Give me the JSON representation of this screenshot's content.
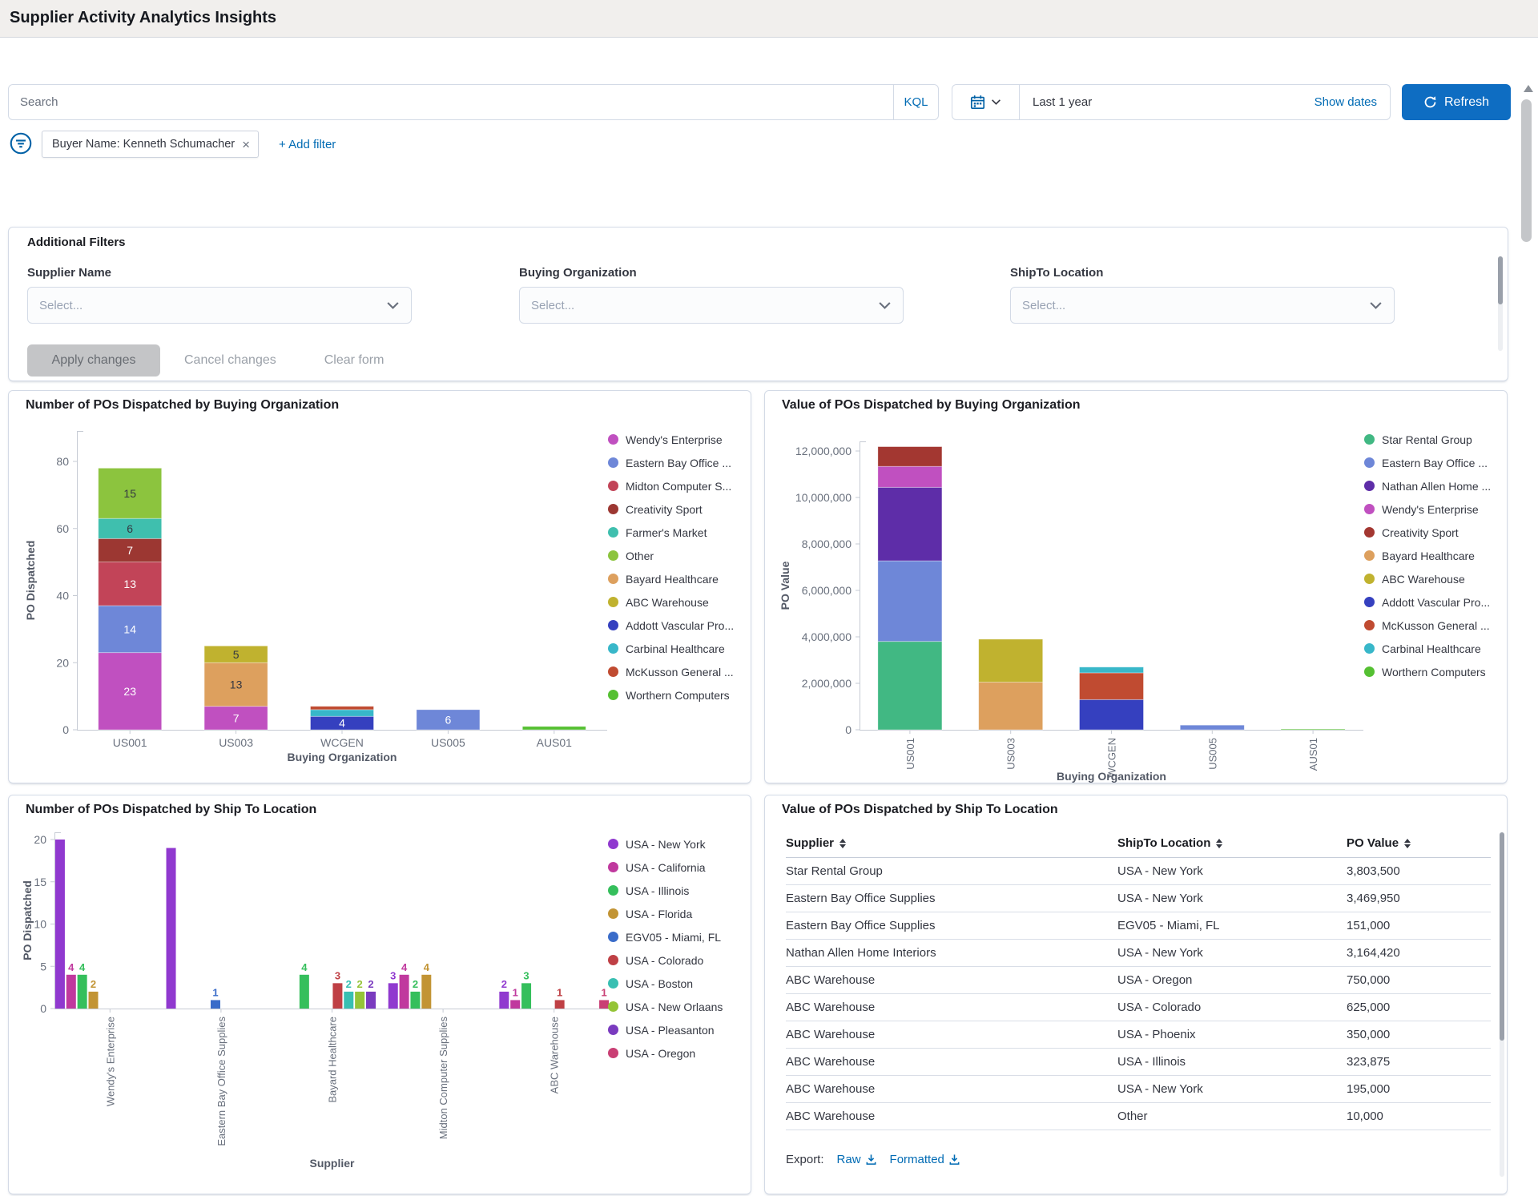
{
  "header": {
    "title": "Supplier Activity Analytics Insights"
  },
  "query_bar": {
    "search_placeholder": "Search",
    "kql": "KQL",
    "date_range": "Last 1 year",
    "show_dates": "Show dates",
    "refresh": "Refresh"
  },
  "filters": {
    "pill": "Buyer Name: Kenneth Schumacher",
    "add_filter": "+ Add filter"
  },
  "additional_filters": {
    "title": "Additional Filters",
    "fields": [
      {
        "label": "Supplier Name",
        "placeholder": "Select..."
      },
      {
        "label": "Buying Organization",
        "placeholder": "Select..."
      },
      {
        "label": "ShipTo Location",
        "placeholder": "Select..."
      }
    ],
    "apply": "Apply changes",
    "cancel": "Cancel changes",
    "clear": "Clear form"
  },
  "chart_data": [
    {
      "type": "bar",
      "mode": "stacked",
      "title": "Number of POs Dispatched by Buying Organization",
      "xlabel": "Buying Organization",
      "ylabel": "PO Dispatched",
      "ylim": [
        0,
        84
      ],
      "yticks": [
        0,
        20,
        40,
        60,
        80
      ],
      "grid": false,
      "legend_position": "right",
      "value_label_min": 4,
      "categories": [
        "US001",
        "US003",
        "WCGEN",
        "US005",
        "AUS01"
      ],
      "series": [
        {
          "name": "Wendy's Enterprise",
          "color": "#c050c0",
          "values": [
            23,
            7,
            0,
            0,
            0
          ]
        },
        {
          "name": "Eastern Bay Office ...",
          "color": "#6e87d8",
          "values": [
            14,
            0,
            0,
            6,
            0
          ]
        },
        {
          "name": "Midton Computer S...",
          "color": "#c24458",
          "values": [
            13,
            0,
            0,
            0,
            0
          ]
        },
        {
          "name": "Creativity Sport",
          "color": "#9c3732",
          "values": [
            7,
            0,
            0,
            0,
            0
          ]
        },
        {
          "name": "Farmer's Market",
          "color": "#3fbfae",
          "values": [
            6,
            0,
            0,
            0,
            0
          ]
        },
        {
          "name": "Other",
          "color": "#8cc43e",
          "values": [
            15,
            0,
            0,
            0,
            0
          ]
        },
        {
          "name": "Bayard Healthcare",
          "color": "#dda05e",
          "values": [
            0,
            13,
            0,
            0,
            0
          ]
        },
        {
          "name": "ABC Warehouse",
          "color": "#c0b22f",
          "values": [
            0,
            5,
            0,
            0,
            0
          ]
        },
        {
          "name": "Addott Vascular Pro...",
          "color": "#3540bf",
          "values": [
            0,
            0,
            4,
            0,
            0
          ]
        },
        {
          "name": "Carbinal Healthcare",
          "color": "#38b7c9",
          "values": [
            0,
            0,
            2,
            0,
            0
          ]
        },
        {
          "name": "McKusson General ...",
          "color": "#c04b31",
          "values": [
            0,
            0,
            1,
            0,
            0
          ]
        },
        {
          "name": "Worthern Computers",
          "color": "#55c032",
          "values": [
            0,
            0,
            0,
            0,
            1
          ]
        }
      ]
    },
    {
      "type": "bar",
      "mode": "stacked",
      "title": "Value of POs Dispatched by Buying Organization",
      "xlabel": "Buying Organization",
      "ylabel": "PO Value",
      "ylim": [
        0,
        12600000
      ],
      "yticks": [
        0,
        2000000,
        4000000,
        6000000,
        8000000,
        10000000,
        12000000
      ],
      "grid": false,
      "legend_position": "right",
      "rotate_x_labels": true,
      "categories": [
        "US001",
        "US003",
        "WCGEN",
        "US005",
        "AUS01"
      ],
      "series": [
        {
          "name": "Star Rental Group",
          "color": "#41b883",
          "values": [
            3803500,
            0,
            0,
            0,
            0
          ]
        },
        {
          "name": "Eastern Bay Office ...",
          "color": "#6e87d8",
          "values": [
            3469950,
            0,
            0,
            200000,
            0
          ]
        },
        {
          "name": "Nathan Allen Home ...",
          "color": "#5e2da8",
          "values": [
            3164420,
            0,
            0,
            0,
            0
          ]
        },
        {
          "name": "Wendy's Enterprise",
          "color": "#c050c0",
          "values": [
            900000,
            0,
            0,
            0,
            0
          ]
        },
        {
          "name": "Creativity Sport",
          "color": "#a33731",
          "values": [
            850000,
            0,
            0,
            0,
            0
          ]
        },
        {
          "name": "Bayard Healthcare",
          "color": "#dda05e",
          "values": [
            0,
            2050000,
            0,
            0,
            0
          ]
        },
        {
          "name": "ABC Warehouse",
          "color": "#c0b22f",
          "values": [
            0,
            1850000,
            0,
            0,
            0
          ]
        },
        {
          "name": "Addott Vascular Pro...",
          "color": "#3540bf",
          "values": [
            0,
            0,
            1300000,
            0,
            0
          ]
        },
        {
          "name": "McKusson General ...",
          "color": "#c04b31",
          "values": [
            0,
            0,
            1150000,
            0,
            0
          ]
        },
        {
          "name": "Carbinal Healthcare",
          "color": "#38b7c9",
          "values": [
            0,
            0,
            250000,
            0,
            0
          ]
        },
        {
          "name": "Worthern Computers",
          "color": "#55c032",
          "values": [
            0,
            0,
            0,
            0,
            30000
          ]
        }
      ]
    },
    {
      "type": "bar",
      "mode": "grouped",
      "title": "Number of POs Dispatched by Ship To Location",
      "xlabel": "Supplier",
      "ylabel": "PO Dispatched",
      "ylim": [
        0,
        21
      ],
      "yticks": [
        0,
        5,
        10,
        15,
        20
      ],
      "grid": false,
      "legend_position": "right",
      "rotate_x_labels": true,
      "bar_label_max": 4,
      "categories": [
        "Wendy's Enterprise",
        "Eastern Bay Office Supplies",
        "Bayard Healthcare",
        "Midton Computer Supplies",
        "ABC Warehouse"
      ],
      "series": [
        {
          "name": "USA - New York",
          "color": "#9039cf",
          "values": [
            20,
            19,
            0,
            3,
            2
          ]
        },
        {
          "name": "USA - California",
          "color": "#c0399e",
          "values": [
            4,
            0,
            0,
            4,
            1
          ]
        },
        {
          "name": "USA - Illinois",
          "color": "#35bf5c",
          "values": [
            4,
            0,
            4,
            2,
            3
          ]
        },
        {
          "name": "USA - Florida",
          "color": "#c29434",
          "values": [
            2,
            0,
            0,
            4,
            0
          ]
        },
        {
          "name": "EGV05 - Miami, FL",
          "color": "#3a6cc9",
          "values": [
            0,
            1,
            0,
            0,
            0
          ]
        },
        {
          "name": "USA - Colorado",
          "color": "#bf4045",
          "values": [
            0,
            0,
            3,
            0,
            1
          ]
        },
        {
          "name": "USA - Boston",
          "color": "#38bfb2",
          "values": [
            0,
            0,
            2,
            0,
            0
          ]
        },
        {
          "name": "USA - New Orlaans",
          "color": "#94c437",
          "values": [
            0,
            0,
            2,
            0,
            0
          ]
        },
        {
          "name": "USA - Pleasanton",
          "color": "#7a3bbf",
          "values": [
            0,
            0,
            2,
            0,
            0
          ]
        },
        {
          "name": "USA - Oregon",
          "color": "#c93f74",
          "values": [
            0,
            0,
            0,
            0,
            1
          ]
        }
      ]
    },
    {
      "type": "table",
      "title": "Value of POs Dispatched by Ship To Location",
      "columns": [
        "Supplier",
        "ShipTo Location",
        "PO Value"
      ],
      "rows": [
        [
          "Star Rental Group",
          "USA - New York",
          "3,803,500"
        ],
        [
          "Eastern Bay Office Supplies",
          "USA - New York",
          "3,469,950"
        ],
        [
          "Eastern Bay Office Supplies",
          "EGV05 - Miami, FL",
          "151,000"
        ],
        [
          "Nathan Allen Home Interiors",
          "USA - New York",
          "3,164,420"
        ],
        [
          "ABC Warehouse",
          "USA - Oregon",
          "750,000"
        ],
        [
          "ABC Warehouse",
          "USA - Colorado",
          "625,000"
        ],
        [
          "ABC Warehouse",
          "USA - Phoenix",
          "350,000"
        ],
        [
          "ABC Warehouse",
          "USA - Illinois",
          "323,875"
        ],
        [
          "ABC Warehouse",
          "USA - New York",
          "195,000"
        ],
        [
          "ABC Warehouse",
          "Other",
          "10,000"
        ]
      ],
      "export_label": "Export:",
      "export_links": [
        "Raw",
        "Formatted"
      ]
    }
  ],
  "colors": {
    "accent_blue": "#0e6dc2",
    "link_blue": "#006bb4",
    "border": "#d3dae6",
    "text": "#343741",
    "subdued_text": "#69707d"
  }
}
